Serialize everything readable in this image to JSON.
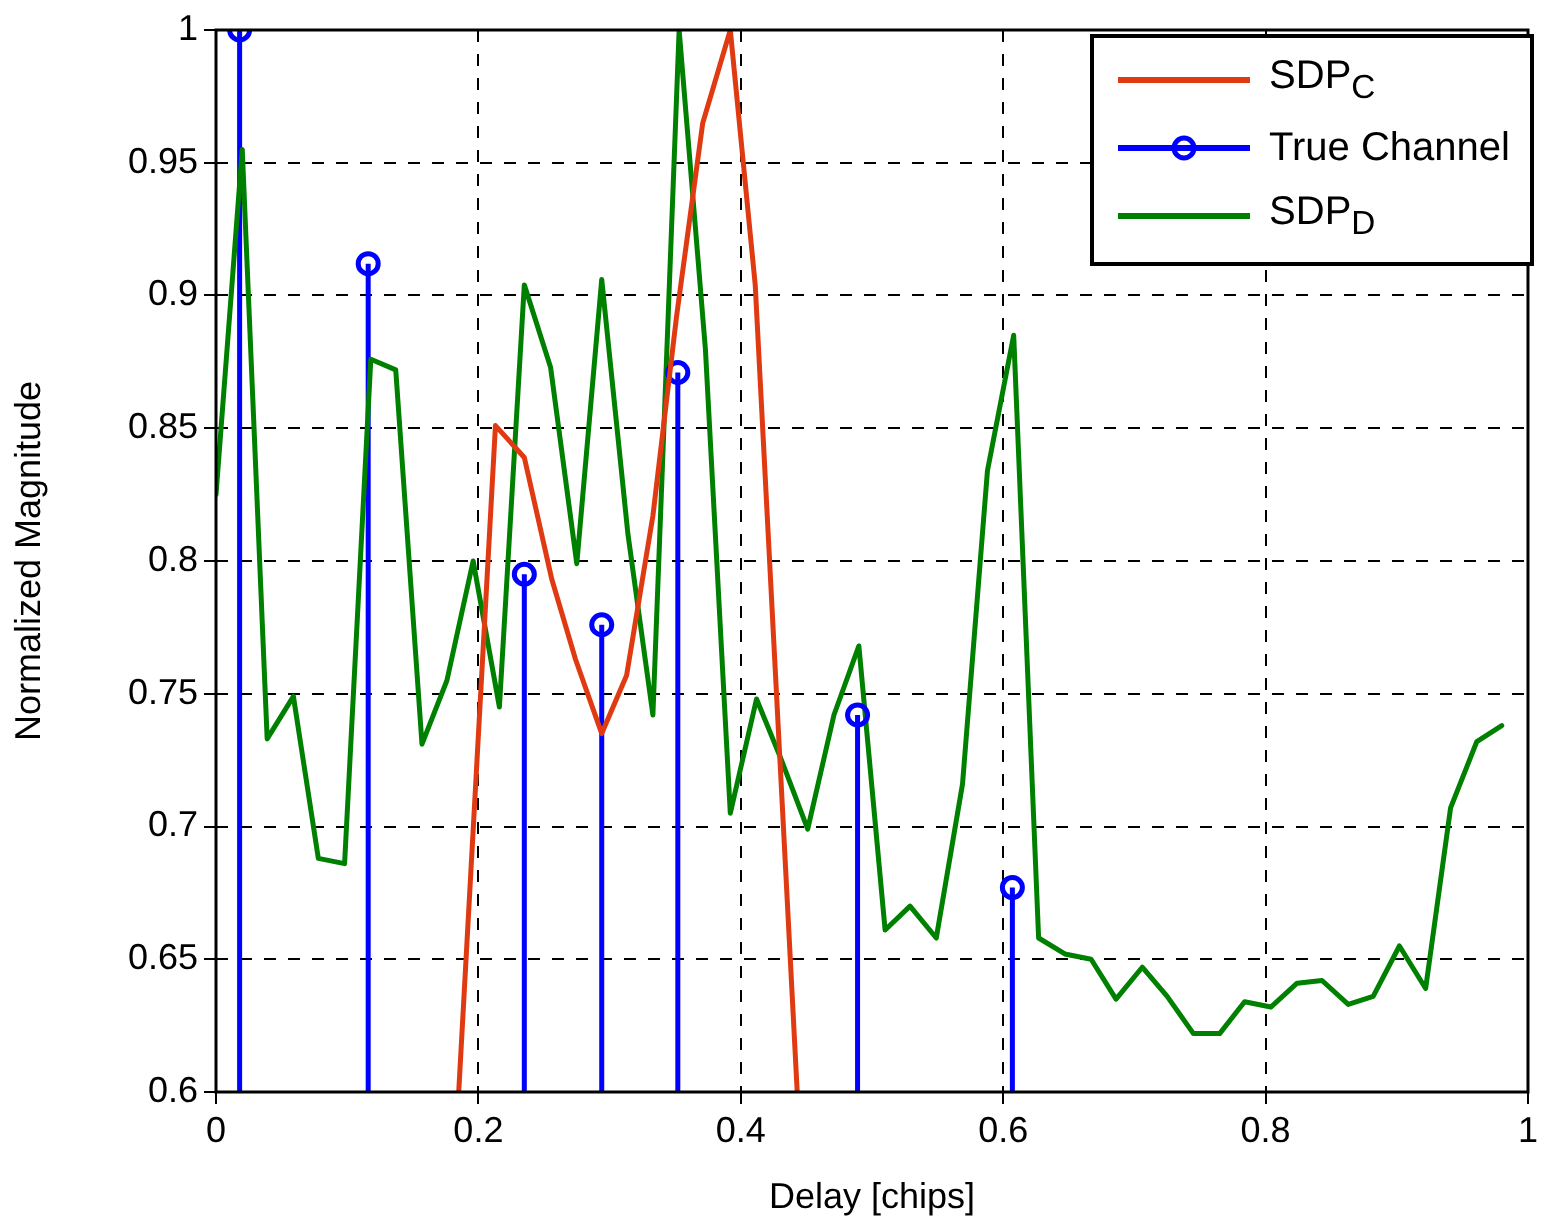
{
  "chart_data": {
    "type": "line",
    "xlabel": "Delay [chips]",
    "ylabel": "Normalized Magnitude",
    "xlim": [
      0,
      1
    ],
    "xticks": [
      0,
      0.2,
      0.4,
      0.6,
      0.8,
      1
    ],
    "ylim": [
      0.6,
      1
    ],
    "yticks": [
      0.6,
      0.65,
      0.7,
      0.75,
      0.8,
      0.85,
      0.9,
      0.95,
      1
    ],
    "grid": true,
    "legend": "top right",
    "series": [
      {
        "name": "SDP$_{C}$",
        "color": "#e03a12",
        "x": [
          0.185,
          0.213,
          0.235,
          0.256,
          0.274,
          0.294,
          0.313,
          0.333,
          0.351,
          0.371,
          0.392,
          0.411,
          0.443
        ],
        "values": [
          0.6,
          0.851,
          0.839,
          0.793,
          0.763,
          0.735,
          0.757,
          0.817,
          0.892,
          0.965,
          1.0,
          0.904,
          0.6
        ]
      },
      {
        "name": "True Channel",
        "type": "lollipop",
        "color": "#0000ff",
        "marker": "circle",
        "x": [
          0.018,
          0.116,
          0.235,
          0.294,
          0.352,
          0.489,
          0.607
        ],
        "values": [
          1.0,
          0.912,
          0.795,
          0.776,
          0.871,
          0.742,
          0.677
        ]
      },
      {
        "name": "SDP$_{D}$",
        "color": "#008000",
        "x": [
          0,
          0.02,
          0.039,
          0.059,
          0.078,
          0.098,
          0.118,
          0.137,
          0.157,
          0.176,
          0.196,
          0.216,
          0.235,
          0.255,
          0.275,
          0.294,
          0.314,
          0.333,
          0.353,
          0.373,
          0.392,
          0.412,
          0.431,
          0.451,
          0.471,
          0.49,
          0.51,
          0.529,
          0.549,
          0.569,
          0.588,
          0.608,
          0.627,
          0.647,
          0.667,
          0.686,
          0.706,
          0.725,
          0.745,
          0.765,
          0.784,
          0.804,
          0.824,
          0.843,
          0.863,
          0.882,
          0.902,
          0.922,
          0.941,
          0.961,
          0.98
        ],
        "values": [
          0.825,
          0.955,
          0.733,
          0.749,
          0.688,
          0.686,
          0.876,
          0.872,
          0.731,
          0.755,
          0.8,
          0.745,
          0.904,
          0.873,
          0.799,
          0.906,
          0.81,
          0.742,
          1.0,
          0.88,
          0.705,
          0.748,
          0.725,
          0.699,
          0.742,
          0.768,
          0.661,
          0.67,
          0.658,
          0.716,
          0.834,
          0.885,
          0.658,
          0.652,
          0.65,
          0.635,
          0.647,
          0.636,
          0.622,
          0.622,
          0.634,
          0.632,
          0.641,
          0.642,
          0.633,
          0.636,
          0.655,
          0.639,
          0.707,
          0.732,
          0.738
        ]
      }
    ]
  }
}
